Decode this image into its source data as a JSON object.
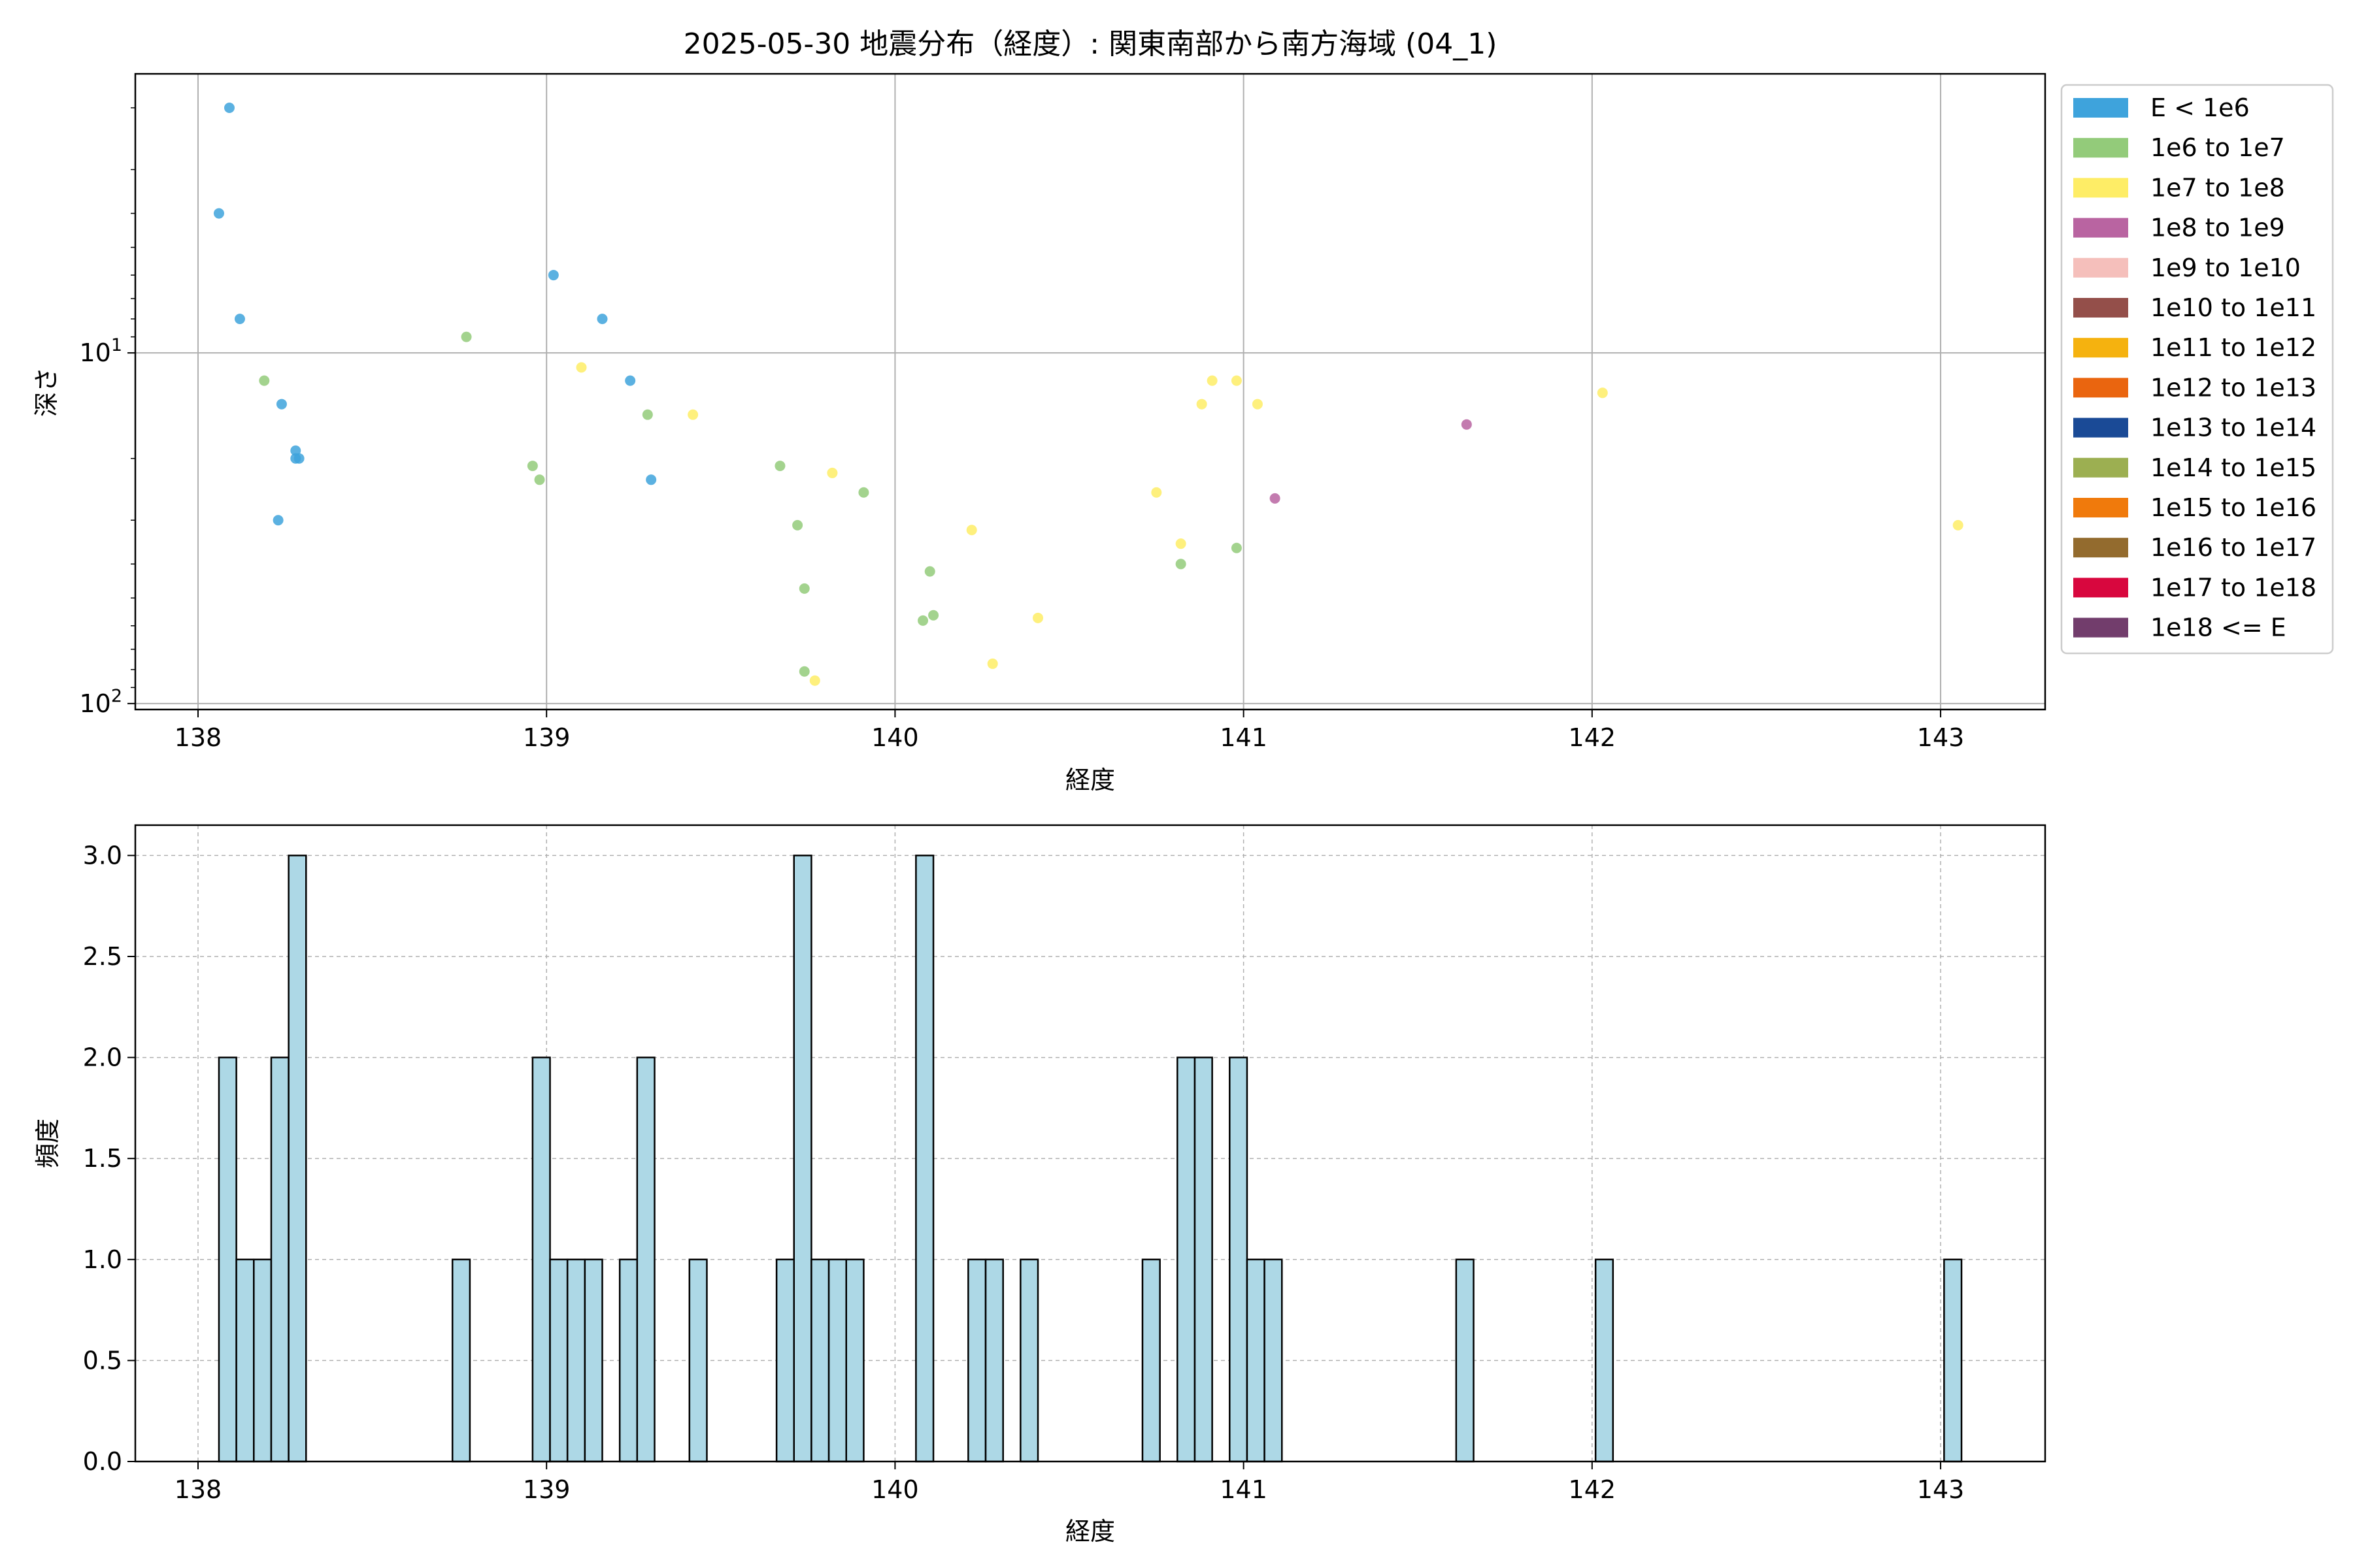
{
  "chart_data": [
    {
      "type": "scatter",
      "title": "2025-05-30 地震分布（経度）: 関東南部から南方海域 (04_1)",
      "xlabel": "経度",
      "ylabel": "深さ",
      "xlim": [
        137.82,
        143.3
      ],
      "ylim": [
        104,
        1.6
      ],
      "yscale": "log",
      "y_inverted": true,
      "grid": true,
      "x_ticks": [
        "138",
        "139",
        "140",
        "141",
        "142",
        "143"
      ],
      "y_ticks": [
        "10^1",
        "10^2"
      ],
      "legend_position": "upper-right-outside",
      "legend": [
        {
          "label": "E < 1e6",
          "color": "#3ea3dc"
        },
        {
          "label": "1e6 to 1e7",
          "color": "#93cb7a"
        },
        {
          "label": "1e7 to 1e8",
          "color": "#feed66"
        },
        {
          "label": "1e8 to 1e9",
          "color": "#b964a1"
        },
        {
          "label": "1e9 to 1e10",
          "color": "#f5bfbb"
        },
        {
          "label": "1e10 to 1e11",
          "color": "#944f4a"
        },
        {
          "label": "1e11 to 1e12",
          "color": "#f5b20f"
        },
        {
          "label": "1e12 to 1e13",
          "color": "#ea650f"
        },
        {
          "label": "1e13 to 1e14",
          "color": "#1a4a96"
        },
        {
          "label": "1e14 to 1e15",
          "color": "#9caf51"
        },
        {
          "label": "1e15 to 1e16",
          "color": "#f07a0c"
        },
        {
          "label": "1e16 to 1e17",
          "color": "#936b2e"
        },
        {
          "label": "1e17 to 1e18",
          "color": "#d8073e"
        },
        {
          "label": "1e18 <= E",
          "color": "#723d6c"
        }
      ],
      "series": [
        {
          "name": "E < 1e6",
          "color": "#3ea3dc",
          "points": [
            [
              138.09,
              2.0
            ],
            [
              138.06,
              4.0
            ],
            [
              138.12,
              8.0
            ],
            [
              138.24,
              14.0
            ],
            [
              138.28,
              19.0
            ],
            [
              138.29,
              20.0
            ],
            [
              138.28,
              20.0
            ],
            [
              138.23,
              30.0
            ],
            [
              139.02,
              6.0
            ],
            [
              139.16,
              8.0
            ],
            [
              139.24,
              12.0
            ],
            [
              139.3,
              23.0
            ]
          ]
        },
        {
          "name": "1e6 to 1e7",
          "color": "#93cb7a",
          "points": [
            [
              138.19,
              12.0
            ],
            [
              138.77,
              9.0
            ],
            [
              138.96,
              21.0
            ],
            [
              138.98,
              23.0
            ],
            [
              139.29,
              15.0
            ],
            [
              139.67,
              21.0
            ],
            [
              139.91,
              25.0
            ],
            [
              139.72,
              31.0
            ],
            [
              139.74,
              47.0
            ],
            [
              140.1,
              42.0
            ],
            [
              140.08,
              58.0
            ],
            [
              140.11,
              56.0
            ],
            [
              139.74,
              81.0
            ],
            [
              140.82,
              40.0
            ],
            [
              140.98,
              36.0
            ]
          ]
        },
        {
          "name": "1e7 to 1e8",
          "color": "#feed66",
          "points": [
            [
              139.1,
              11.0
            ],
            [
              139.42,
              15.0
            ],
            [
              139.82,
              22.0
            ],
            [
              139.77,
              86.0
            ],
            [
              140.22,
              32.0
            ],
            [
              140.28,
              77.0
            ],
            [
              140.41,
              57.0
            ],
            [
              140.75,
              25.0
            ],
            [
              140.82,
              35.0
            ],
            [
              140.88,
              14.0
            ],
            [
              140.91,
              12.0
            ],
            [
              140.98,
              12.0
            ],
            [
              141.04,
              14.0
            ],
            [
              142.03,
              13.0
            ],
            [
              143.05,
              31.0
            ]
          ]
        },
        {
          "name": "1e8 to 1e9",
          "color": "#b964a1",
          "points": [
            [
              141.64,
              16.0
            ],
            [
              141.09,
              26.0
            ]
          ]
        }
      ]
    },
    {
      "type": "bar",
      "subtype": "histogram",
      "xlabel": "経度",
      "ylabel": "頻度",
      "xlim": [
        137.82,
        143.3
      ],
      "ylim": [
        0,
        3.15
      ],
      "grid": true,
      "bar_color": "#add8e6",
      "edge_color": "#000000",
      "bin_width": 0.05,
      "x_ticks": [
        "138",
        "139",
        "140",
        "141",
        "142",
        "143"
      ],
      "y_ticks": [
        "0.0",
        "0.5",
        "1.0",
        "1.5",
        "2.0",
        "2.5",
        "3.0"
      ],
      "bins": [
        {
          "x": 138.06,
          "count": 2
        },
        {
          "x": 138.11,
          "count": 1
        },
        {
          "x": 138.16,
          "count": 1
        },
        {
          "x": 138.21,
          "count": 2
        },
        {
          "x": 138.26,
          "count": 3
        },
        {
          "x": 138.73,
          "count": 1
        },
        {
          "x": 138.96,
          "count": 2
        },
        {
          "x": 139.01,
          "count": 1
        },
        {
          "x": 139.06,
          "count": 1
        },
        {
          "x": 139.11,
          "count": 1
        },
        {
          "x": 139.21,
          "count": 1
        },
        {
          "x": 139.26,
          "count": 2
        },
        {
          "x": 139.41,
          "count": 1
        },
        {
          "x": 139.66,
          "count": 1
        },
        {
          "x": 139.71,
          "count": 3
        },
        {
          "x": 139.76,
          "count": 1
        },
        {
          "x": 139.81,
          "count": 1
        },
        {
          "x": 139.86,
          "count": 1
        },
        {
          "x": 140.06,
          "count": 3
        },
        {
          "x": 140.21,
          "count": 1
        },
        {
          "x": 140.26,
          "count": 1
        },
        {
          "x": 140.36,
          "count": 1
        },
        {
          "x": 140.71,
          "count": 1
        },
        {
          "x": 140.81,
          "count": 2
        },
        {
          "x": 140.86,
          "count": 2
        },
        {
          "x": 140.96,
          "count": 2
        },
        {
          "x": 141.01,
          "count": 1
        },
        {
          "x": 141.06,
          "count": 1
        },
        {
          "x": 141.61,
          "count": 1
        },
        {
          "x": 142.01,
          "count": 1
        },
        {
          "x": 143.01,
          "count": 1
        }
      ]
    }
  ]
}
